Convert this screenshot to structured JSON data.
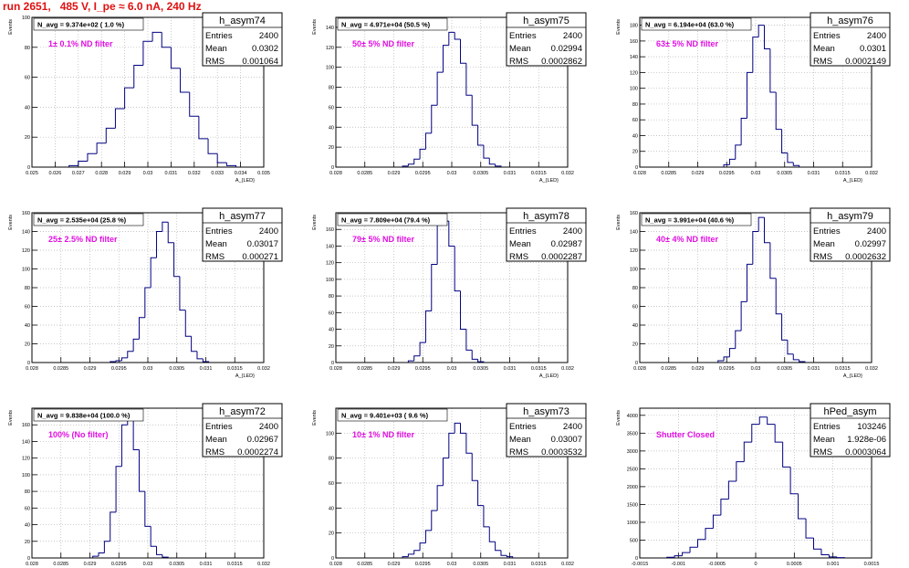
{
  "title": "run 2651,   485 V, I_pe ≈ 6.0 nA, 240 Hz",
  "colors": {
    "title": "#e01010",
    "annotation": "#e010e0",
    "hist_line": "#000080",
    "frame": "#000000",
    "grid": "#b4b4b4"
  },
  "chart_data": [
    {
      "type": "histogram",
      "name": "h_asym74",
      "xlabel": "A_{LED}",
      "ylabel": "Events",
      "xlim": [
        0.025,
        0.035
      ],
      "ylim": [
        0,
        100
      ],
      "xticks": [
        "0.025",
        "0.026",
        "0.027",
        "0.028",
        "0.029",
        "0.03",
        "0.031",
        "0.032",
        "0.033",
        "0.034",
        "0.035"
      ],
      "yticks": [
        "0",
        "20",
        "40",
        "60",
        "80",
        "100"
      ],
      "header": "N_avg = 9.374e+02 ( 1.0 %)",
      "note": "1± 0.1% ND filter",
      "stats": {
        "title": "h_asym74",
        "rows": [
          [
            "Entries",
            "2400"
          ],
          [
            "Mean",
            "0.0302"
          ],
          [
            "RMS",
            "0.001064"
          ]
        ]
      },
      "x": [
        0.0268,
        0.0272,
        0.0276,
        0.028,
        0.0284,
        0.0288,
        0.0292,
        0.0296,
        0.03,
        0.0304,
        0.0308,
        0.0312,
        0.0316,
        0.032,
        0.0324,
        0.0328,
        0.0332,
        0.0336
      ],
      "values": [
        1,
        4,
        9,
        16,
        26,
        39,
        53,
        68,
        84,
        90,
        80,
        66,
        50,
        34,
        19,
        9,
        3,
        1
      ]
    },
    {
      "type": "histogram",
      "name": "h_asym75",
      "xlabel": "A_{LED}",
      "ylabel": "Events",
      "xlim": [
        0.028,
        0.032
      ],
      "ylim": [
        0,
        150
      ],
      "xticks": [
        "0.028",
        "0.0285",
        "0.029",
        "0.0295",
        "0.03",
        "0.0305",
        "0.031",
        "0.0315",
        "0.032"
      ],
      "yticks": [
        "0",
        "20",
        "40",
        "60",
        "80",
        "100",
        "120",
        "140"
      ],
      "header": "N_avg = 4.971e+04 (50.5 %)",
      "note": "50± 5% ND filter",
      "stats": {
        "title": "h_asym75",
        "rows": [
          [
            "Entries",
            "2400"
          ],
          [
            "Mean",
            "0.02994"
          ],
          [
            "RMS",
            "0.0002862"
          ]
        ]
      },
      "x": [
        0.0292,
        0.0293,
        0.0294,
        0.0295,
        0.0296,
        0.0297,
        0.0298,
        0.0299,
        0.03,
        0.0301,
        0.0302,
        0.0303,
        0.0304,
        0.0305,
        0.0306,
        0.0307,
        0.0308
      ],
      "values": [
        1,
        3,
        8,
        18,
        34,
        62,
        95,
        122,
        135,
        128,
        104,
        72,
        42,
        22,
        9,
        3,
        1
      ]
    },
    {
      "type": "histogram",
      "name": "h_asym76",
      "xlabel": "A_{LED}",
      "ylabel": "Events",
      "xlim": [
        0.028,
        0.032
      ],
      "ylim": [
        0,
        190
      ],
      "xticks": [
        "0.028",
        "0.0285",
        "0.029",
        "0.0295",
        "0.03",
        "0.0305",
        "0.031",
        "0.0315",
        "0.032"
      ],
      "yticks": [
        "0",
        "20",
        "40",
        "60",
        "80",
        "100",
        "120",
        "140",
        "160",
        "180"
      ],
      "header": "N_avg = 6.194e+04 (63.0 %)",
      "note": "63± 5% ND filter",
      "stats": {
        "title": "h_asym76",
        "rows": [
          [
            "Entries",
            "2400"
          ],
          [
            "Mean",
            "0.0301"
          ],
          [
            "RMS",
            "0.0002149"
          ]
        ]
      },
      "x": [
        0.0295,
        0.0296,
        0.0297,
        0.0298,
        0.0299,
        0.03,
        0.0301,
        0.0302,
        0.0303,
        0.0304,
        0.0305,
        0.0306,
        0.0307
      ],
      "values": [
        3,
        10,
        28,
        62,
        120,
        165,
        180,
        150,
        95,
        48,
        18,
        6,
        2
      ]
    },
    {
      "type": "histogram",
      "name": "h_asym77",
      "xlabel": "A_{LED}",
      "ylabel": "Events",
      "xlim": [
        0.028,
        0.032
      ],
      "ylim": [
        0,
        160
      ],
      "xticks": [
        "0.028",
        "0.0285",
        "0.029",
        "0.0295",
        "0.03",
        "0.0305",
        "0.031",
        "0.0315",
        "0.032"
      ],
      "yticks": [
        "0",
        "20",
        "40",
        "60",
        "80",
        "100",
        "120",
        "140",
        "160"
      ],
      "header": "N_avg = 2.535e+04 (25.8 %)",
      "note": "25± 2.5% ND filter",
      "stats": {
        "title": "h_asym77",
        "rows": [
          [
            "Entries",
            "2400"
          ],
          [
            "Mean",
            "0.03017"
          ],
          [
            "RMS",
            "0.000271"
          ]
        ]
      },
      "x": [
        0.0294,
        0.0295,
        0.0296,
        0.0297,
        0.0298,
        0.0299,
        0.03,
        0.0301,
        0.0302,
        0.0303,
        0.0304,
        0.0305,
        0.0306,
        0.0307,
        0.0308,
        0.0309,
        0.031
      ],
      "values": [
        1,
        2,
        5,
        12,
        25,
        48,
        80,
        112,
        140,
        150,
        128,
        92,
        56,
        28,
        12,
        4,
        1
      ]
    },
    {
      "type": "histogram",
      "name": "h_asym78",
      "xlabel": "A_{LED}",
      "ylabel": "Events",
      "xlim": [
        0.028,
        0.032
      ],
      "ylim": [
        0,
        180
      ],
      "xticks": [
        "0.028",
        "0.0285",
        "0.029",
        "0.0295",
        "0.03",
        "0.0305",
        "0.031",
        "0.0315",
        "0.032"
      ],
      "yticks": [
        "0",
        "20",
        "40",
        "60",
        "80",
        "100",
        "120",
        "140",
        "160"
      ],
      "header": "N_avg = 7.809e+04 (79.4 %)",
      "note": "79± 5% ND filter",
      "stats": {
        "title": "h_asym78",
        "rows": [
          [
            "Entries",
            "2400"
          ],
          [
            "Mean",
            "0.02987"
          ],
          [
            "RMS",
            "0.0002287"
          ]
        ]
      },
      "x": [
        0.0293,
        0.0294,
        0.0295,
        0.0296,
        0.0297,
        0.0298,
        0.0299,
        0.03,
        0.0301,
        0.0302,
        0.0303,
        0.0304,
        0.0305
      ],
      "values": [
        2,
        8,
        24,
        62,
        118,
        165,
        170,
        140,
        86,
        40,
        15,
        4,
        1
      ]
    },
    {
      "type": "histogram",
      "name": "h_asym79",
      "xlabel": "A_{LED}",
      "ylabel": "Events",
      "xlim": [
        0.028,
        0.032
      ],
      "ylim": [
        0,
        160
      ],
      "xticks": [
        "0.028",
        "0.0285",
        "0.029",
        "0.0295",
        "0.03",
        "0.0305",
        "0.031",
        "0.0315",
        "0.032"
      ],
      "yticks": [
        "0",
        "20",
        "40",
        "60",
        "80",
        "100",
        "120",
        "140",
        "160"
      ],
      "header": "N_avg = 3.991e+04 (40.6 %)",
      "note": "40± 4% ND filter",
      "stats": {
        "title": "h_asym79",
        "rows": [
          [
            "Entries",
            "2400"
          ],
          [
            "Mean",
            "0.02997"
          ],
          [
            "RMS",
            "0.0002632"
          ]
        ]
      },
      "x": [
        0.0294,
        0.0295,
        0.0296,
        0.0297,
        0.0298,
        0.0299,
        0.03,
        0.0301,
        0.0302,
        0.0303,
        0.0304,
        0.0305,
        0.0306,
        0.0307,
        0.0308
      ],
      "values": [
        2,
        6,
        15,
        34,
        65,
        105,
        140,
        155,
        128,
        90,
        52,
        24,
        9,
        3,
        1
      ]
    },
    {
      "type": "histogram",
      "name": "h_asym72",
      "xlabel": "A_{LED}",
      "ylabel": "Events",
      "xlim": [
        0.028,
        0.032
      ],
      "ylim": [
        0,
        180
      ],
      "xticks": [
        "0.028",
        "0.0285",
        "0.029",
        "0.0295",
        "0.03",
        "0.0305",
        "0.031",
        "0.0315",
        "0.032"
      ],
      "yticks": [
        "0",
        "20",
        "40",
        "60",
        "80",
        "100",
        "120",
        "140",
        "160"
      ],
      "header": "N_avg = 9.838e+04 (100.0 %)",
      "note": "100% (No filter)",
      "stats": {
        "title": "h_asym72",
        "rows": [
          [
            "Entries",
            "2400"
          ],
          [
            "Mean",
            "0.02967"
          ],
          [
            "RMS",
            "0.0002274"
          ]
        ]
      },
      "x": [
        0.0291,
        0.0292,
        0.0293,
        0.0294,
        0.0295,
        0.0296,
        0.0297,
        0.0298,
        0.0299,
        0.03,
        0.0301,
        0.0302,
        0.0303
      ],
      "values": [
        2,
        6,
        20,
        55,
        110,
        160,
        172,
        130,
        80,
        38,
        14,
        4,
        1
      ]
    },
    {
      "type": "histogram",
      "name": "h_asym73",
      "xlabel": "A_{LED}",
      "ylabel": "Events",
      "xlim": [
        0.028,
        0.032
      ],
      "ylim": [
        0,
        120
      ],
      "xticks": [
        "0.028",
        "0.0285",
        "0.029",
        "0.0295",
        "0.03",
        "0.0305",
        "0.031",
        "0.0315",
        "0.032"
      ],
      "yticks": [
        "0",
        "20",
        "40",
        "60",
        "80",
        "100"
      ],
      "header": "N_avg = 9.401e+03 ( 9.6 %)",
      "note": "10± 1% ND filter",
      "stats": {
        "title": "h_asym73",
        "rows": [
          [
            "Entries",
            "2400"
          ],
          [
            "Mean",
            "0.03007"
          ],
          [
            "RMS",
            "0.0003532"
          ]
        ]
      },
      "x": [
        0.0292,
        0.0293,
        0.0294,
        0.0295,
        0.0296,
        0.0297,
        0.0298,
        0.0299,
        0.03,
        0.0301,
        0.0302,
        0.0303,
        0.0304,
        0.0305,
        0.0306,
        0.0307,
        0.0308,
        0.0309,
        0.031
      ],
      "values": [
        1,
        3,
        6,
        12,
        22,
        38,
        58,
        80,
        100,
        108,
        100,
        84,
        62,
        42,
        25,
        13,
        6,
        2,
        1
      ]
    },
    {
      "type": "histogram",
      "name": "hPed_asym",
      "xlabel": "A_{LED}",
      "ylabel": "Events",
      "xlim": [
        -0.0015,
        0.0015
      ],
      "ylim": [
        0,
        4200
      ],
      "xticks": [
        "-0.0015",
        "-0.001",
        "-0.0005",
        "0",
        "0.0005",
        "0.001",
        "0.0015"
      ],
      "yticks": [
        "0",
        "500",
        "1000",
        "1500",
        "2000",
        "2500",
        "3000",
        "3500",
        "4000"
      ],
      "header": "",
      "note": "Shutter Closed",
      "stats": {
        "title": "hPed_asym",
        "rows": [
          [
            "Entries",
            "103246"
          ],
          [
            "Mean",
            "1.928e-06"
          ],
          [
            "RMS",
            "0.0003064"
          ]
        ]
      },
      "x": [
        -0.0011,
        -0.001,
        -0.0009,
        -0.0008,
        -0.0007,
        -0.0006,
        -0.0005,
        -0.0004,
        -0.0003,
        -0.0002,
        -0.0001,
        0,
        0.0001,
        0.0002,
        0.0003,
        0.0004,
        0.0005,
        0.0006,
        0.0007,
        0.0008,
        0.0009,
        0.001,
        0.0011
      ],
      "values": [
        20,
        60,
        150,
        300,
        520,
        830,
        1200,
        1650,
        2150,
        2700,
        3250,
        3750,
        3950,
        3750,
        3250,
        2550,
        1800,
        1100,
        560,
        250,
        90,
        30,
        10
      ]
    }
  ]
}
